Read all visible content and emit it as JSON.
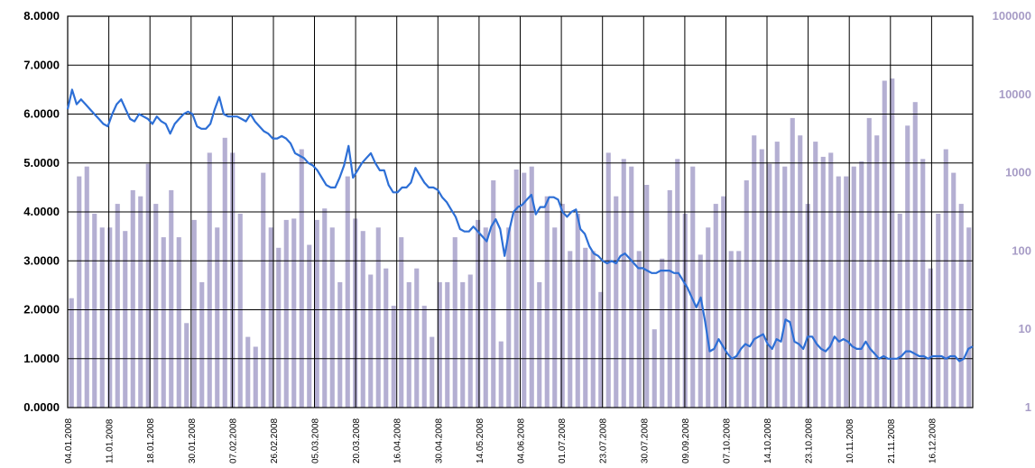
{
  "chart_data": {
    "type": "bar+line",
    "title": "",
    "grid": true,
    "left_axis": {
      "min": 0,
      "max": 8,
      "ticks": [
        "0.0000",
        "1.0000",
        "2.0000",
        "3.0000",
        "4.0000",
        "5.0000",
        "6.0000",
        "7.0000",
        "8.0000"
      ],
      "color": "#000000"
    },
    "right_axis": {
      "scale": "log",
      "min": 1,
      "max": 100000,
      "ticks": [
        "1",
        "10",
        "100",
        "1000",
        "10000",
        "100000"
      ],
      "color": "#a79cc6"
    },
    "x_tick_labels": [
      "04.01.2008",
      "11.01.2008",
      "18.01.2008",
      "30.01.2008",
      "07.02.2008",
      "26.02.2008",
      "05.03.2008",
      "20.03.2008",
      "16.04.2008",
      "30.04.2008",
      "14.05.2008",
      "04.06.2008",
      "01.07.2008",
      "23.07.2008",
      "30.07.2008",
      "09.09.2008",
      "07.10.2008",
      "14.10.2008",
      "23.10.2008",
      "10.11.2008",
      "21.11.2008",
      "16.12.2008"
    ],
    "colors": {
      "line": "#2d6fd6",
      "bars": "#b4afd2",
      "grid": "#000000"
    },
    "line_series": [
      6.1,
      6.5,
      6.2,
      6.3,
      6.2,
      6.1,
      6.0,
      5.9,
      5.8,
      5.75,
      6.0,
      6.2,
      6.3,
      6.1,
      5.9,
      5.85,
      6.0,
      5.95,
      5.9,
      5.8,
      5.95,
      5.85,
      5.8,
      5.6,
      5.8,
      5.9,
      6.0,
      6.05,
      6.0,
      5.75,
      5.7,
      5.7,
      5.8,
      6.1,
      6.35,
      6.0,
      5.95,
      5.95,
      5.95,
      5.9,
      5.85,
      6.0,
      5.85,
      5.75,
      5.65,
      5.6,
      5.5,
      5.5,
      5.55,
      5.5,
      5.4,
      5.2,
      5.15,
      5.1,
      5.0,
      4.95,
      4.85,
      4.7,
      4.55,
      4.5,
      4.5,
      4.7,
      4.95,
      5.35,
      4.7,
      4.85,
      5.0,
      5.1,
      5.2,
      5.0,
      4.85,
      4.85,
      4.55,
      4.4,
      4.4,
      4.5,
      4.5,
      4.6,
      4.9,
      4.75,
      4.6,
      4.5,
      4.5,
      4.45,
      4.3,
      4.2,
      4.05,
      3.9,
      3.65,
      3.6,
      3.6,
      3.7,
      3.6,
      3.5,
      3.4,
      3.7,
      3.85,
      3.65,
      3.1,
      3.6,
      4.0,
      4.1,
      4.15,
      4.25,
      4.35,
      3.95,
      4.1,
      4.1,
      4.3,
      4.3,
      4.25,
      4.0,
      3.9,
      4.0,
      4.05,
      3.65,
      3.55,
      3.3,
      3.15,
      3.1,
      3.0,
      2.95,
      3.0,
      2.95,
      3.1,
      3.15,
      3.05,
      2.95,
      2.85,
      2.85,
      2.8,
      2.75,
      2.75,
      2.8,
      2.8,
      2.8,
      2.75,
      2.75,
      2.6,
      2.45,
      2.25,
      2.05,
      2.25,
      1.75,
      1.15,
      1.2,
      1.4,
      1.25,
      1.1,
      1.0,
      1.05,
      1.2,
      1.3,
      1.25,
      1.4,
      1.45,
      1.5,
      1.3,
      1.2,
      1.4,
      1.35,
      1.8,
      1.75,
      1.35,
      1.3,
      1.2,
      1.45,
      1.45,
      1.3,
      1.2,
      1.15,
      1.25,
      1.45,
      1.35,
      1.4,
      1.35,
      1.25,
      1.2,
      1.2,
      1.35,
      1.2,
      1.1,
      1.0,
      1.05,
      1.0,
      1.0,
      1.0,
      1.05,
      1.15,
      1.15,
      1.1,
      1.05,
      1.05,
      1.0,
      1.05,
      1.05,
      1.05,
      1.0,
      1.05,
      1.05,
      0.95,
      1.0,
      1.2,
      1.25
    ],
    "bar_values": [
      25,
      900,
      1200,
      300,
      200,
      200,
      400,
      180,
      600,
      500,
      1300,
      400,
      150,
      600,
      150,
      12,
      250,
      40,
      1800,
      200,
      2800,
      1800,
      300,
      8,
      6,
      1000,
      200,
      110,
      250,
      260,
      2000,
      120,
      250,
      350,
      200,
      40,
      900,
      260,
      180,
      50,
      200,
      60,
      20,
      150,
      40,
      60,
      20,
      8,
      40,
      40,
      150,
      40,
      50,
      250,
      200,
      800,
      7,
      200,
      1100,
      1000,
      1200,
      40,
      500,
      200,
      400,
      100,
      300,
      110,
      100,
      30,
      1800,
      500,
      1500,
      1200,
      100,
      700,
      10,
      80,
      600,
      1500,
      300,
      1200,
      90,
      200,
      400,
      500,
      100,
      100,
      800,
      3000,
      2000,
      1300,
      2500,
      1200,
      5000,
      3000,
      400,
      2500,
      1600,
      1800,
      900,
      900,
      1200,
      1400,
      5000,
      3000,
      15000,
      16000,
      300,
      4000,
      8000,
      1500,
      60,
      300,
      2000,
      1000,
      400,
      200
    ],
    "bar_right_axis": true
  }
}
